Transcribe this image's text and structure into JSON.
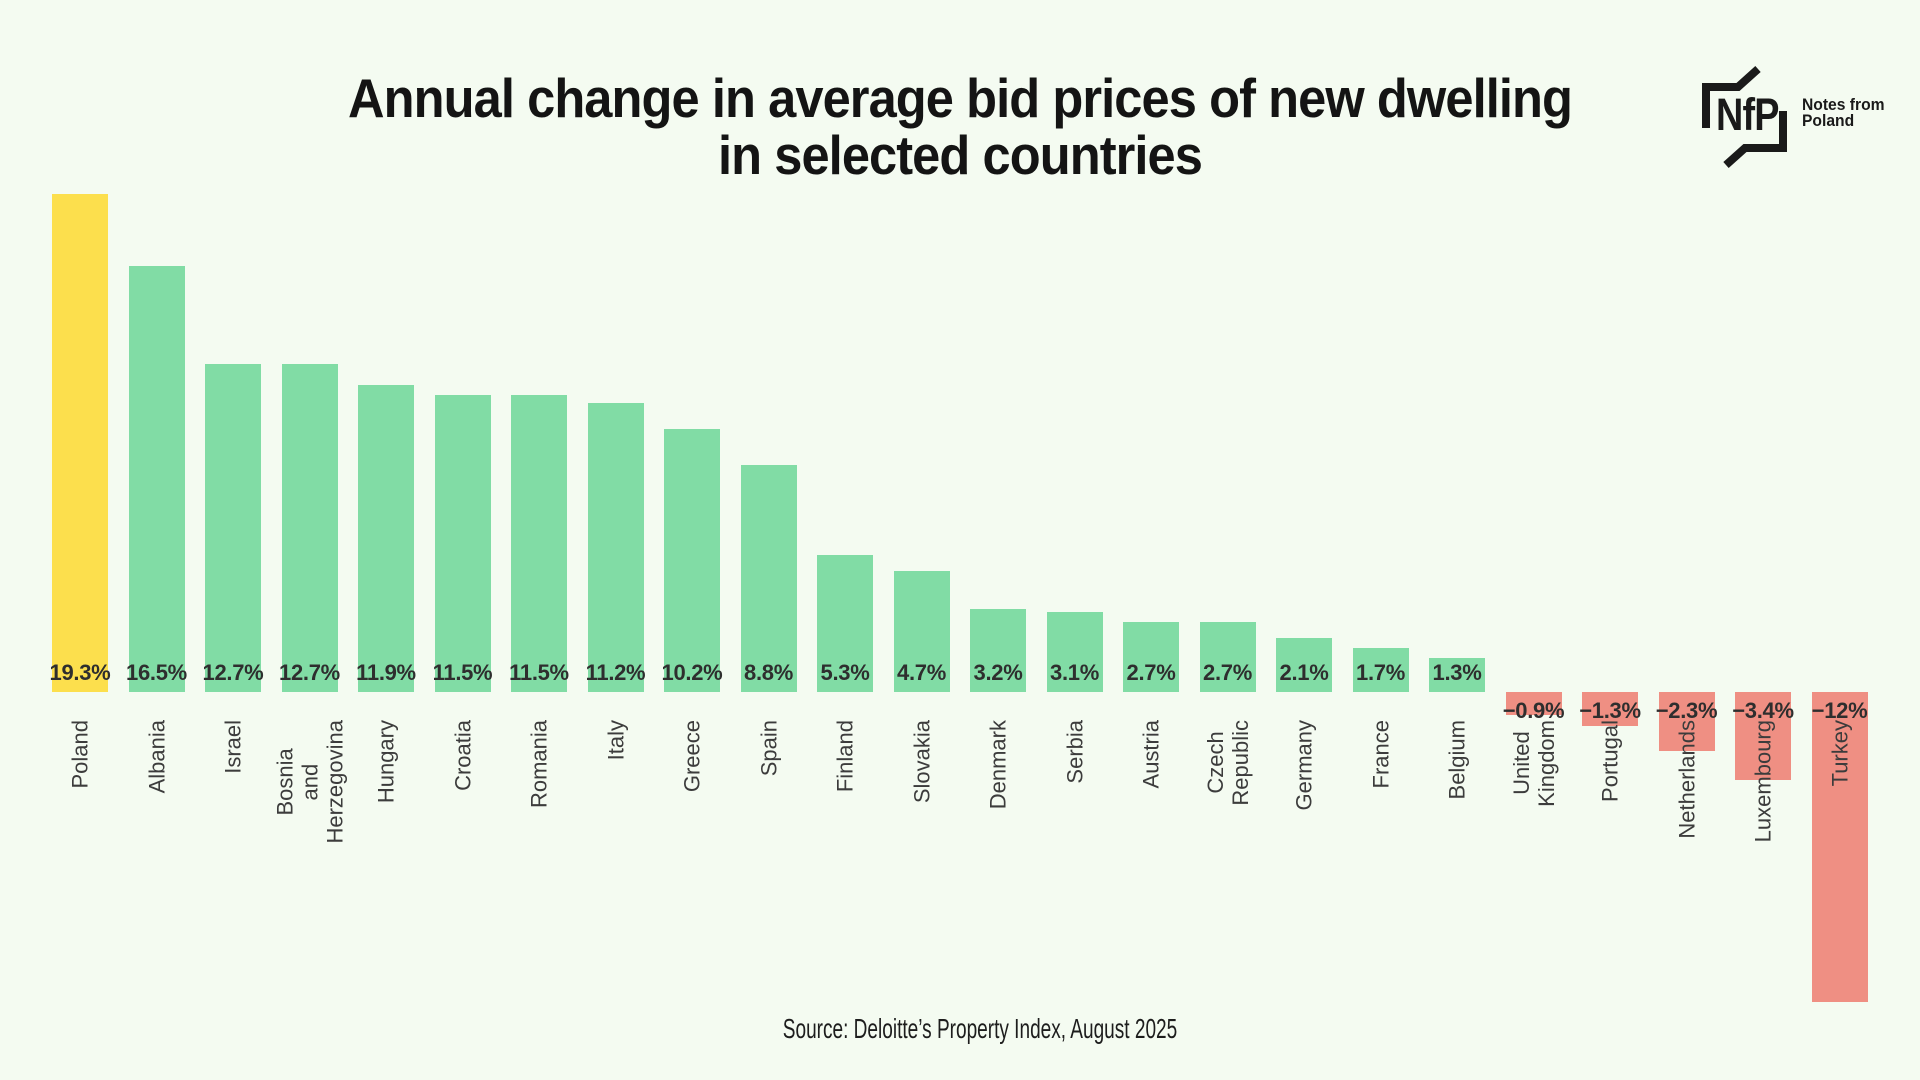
{
  "header": {
    "title": "Annual change in average bid prices of new dwelling\nin selected countries"
  },
  "logo": {
    "abbr": "NfP",
    "name": "Notes from\nPoland"
  },
  "footer": {
    "source": "Source: Deloitte’s Property Index, August 2025"
  },
  "chart_data": {
    "type": "bar",
    "title": "Annual change in average bid prices of new dwelling in selected countries",
    "categories": [
      "Poland",
      "Albania",
      "Israel",
      "Bosnia\nand\nHerzegovina",
      "Hungary",
      "Croatia",
      "Romania",
      "Italy",
      "Greece",
      "Spain",
      "Finland",
      "Slovakia",
      "Denmark",
      "Serbia",
      "Austria",
      "Czech\nRepublic",
      "Germany",
      "France",
      "Belgium",
      "United\nKingdom",
      "Portugal",
      "Netherlands",
      "Luxembourg",
      "Turkey"
    ],
    "values": [
      19.3,
      16.5,
      12.7,
      12.7,
      11.9,
      11.5,
      11.5,
      11.2,
      10.2,
      8.8,
      5.3,
      4.7,
      3.2,
      3.1,
      2.7,
      2.7,
      2.1,
      1.7,
      1.3,
      -0.9,
      -1.3,
      -2.3,
      -3.4,
      -12
    ],
    "value_labels": [
      "19.3%",
      "16.5%",
      "12.7%",
      "12.7%",
      "11.9%",
      "11.5%",
      "11.5%",
      "11.2%",
      "10.2%",
      "8.8%",
      "5.3%",
      "4.7%",
      "3.2%",
      "3.1%",
      "2.7%",
      "2.7%",
      "2.1%",
      "1.7%",
      "1.3%",
      "−0.9%",
      "−1.3%",
      "−2.3%",
      "−3.4%",
      "−12%"
    ],
    "highlight_category": "Poland",
    "colors": {
      "positive": "#81DCA5",
      "negative": "#EF8F83",
      "highlight": "#FCDF4D",
      "background": "#F4FBF1",
      "value_label": "#2E2E2E",
      "axis_label": "#3C3C3C"
    },
    "xlabel": "",
    "ylabel": "",
    "grid": false,
    "legend": "none",
    "ylim": [
      -12.5,
      19.5
    ]
  }
}
